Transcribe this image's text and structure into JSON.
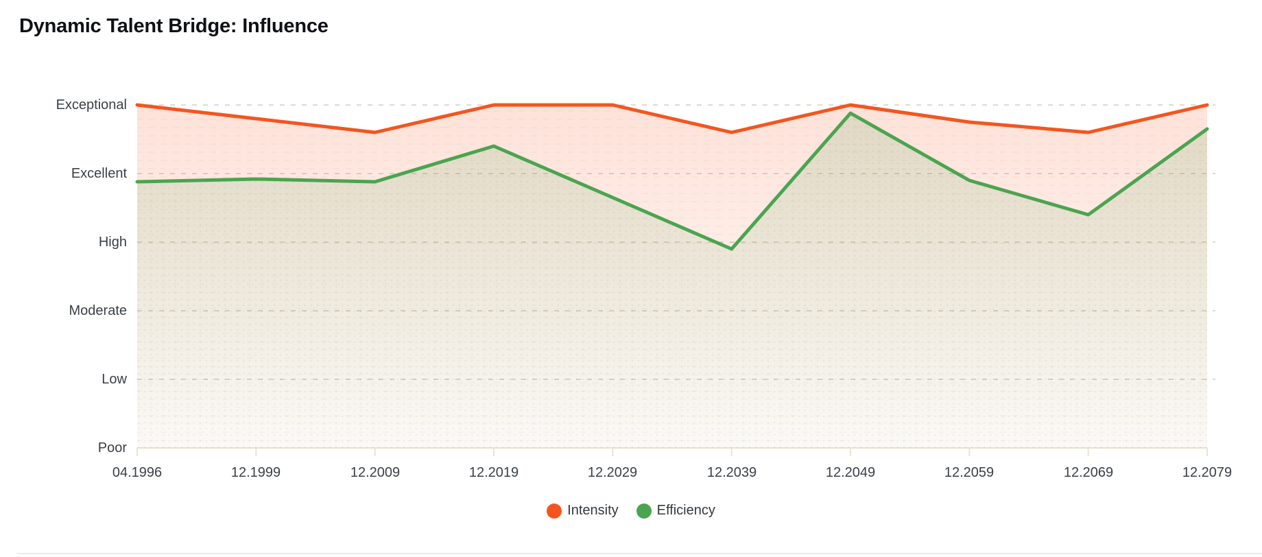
{
  "title": "Dynamic Talent Bridge: Influence",
  "chart_data": {
    "type": "area",
    "title": "Dynamic Talent Bridge: Influence",
    "categories": [
      "04.1996",
      "12.1999",
      "12.2009",
      "12.2019",
      "12.2029",
      "12.2039",
      "12.2049",
      "12.2059",
      "12.2069",
      "12.2079"
    ],
    "y_axis_labels": [
      "Exceptional",
      "Excellent",
      "High",
      "Moderate",
      "Low",
      "Poor"
    ],
    "y_value_map": {
      "Poor": 0,
      "Low": 1,
      "Moderate": 2,
      "High": 3,
      "Excellent": 4,
      "Exceptional": 5
    },
    "ylim": [
      0,
      5
    ],
    "series": [
      {
        "name": "Intensity",
        "color": "#f4551e",
        "values": [
          5.0,
          4.8,
          4.6,
          5.0,
          5.0,
          4.6,
          5.0,
          4.75,
          4.6,
          5.0
        ]
      },
      {
        "name": "Efficiency",
        "color": "#4ba450",
        "values": [
          3.88,
          3.92,
          3.88,
          4.4,
          3.65,
          2.9,
          4.88,
          3.9,
          3.4,
          4.65
        ]
      }
    ],
    "grid": "horizontal dashed gridlines",
    "legend_position": "bottom-center",
    "legend_swatch": "circle",
    "colors": {
      "gridline": "#d6d2c6",
      "axis_line": "#e9e2d3",
      "label_text": "#3a3f45",
      "title_text": "#0f1114"
    }
  }
}
